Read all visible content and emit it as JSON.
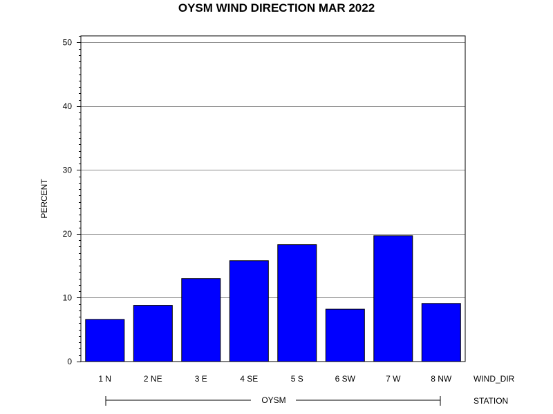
{
  "chart_data": {
    "type": "bar",
    "title": "OYSM WIND DIRECTION MAR 2022",
    "ylabel": "PERCENT",
    "xlabel": "WIND_DIR",
    "group_axis_label": "STATION",
    "group_label": "OYSM",
    "categories": [
      "1 N",
      "2 NE",
      "3 E",
      "4 SE",
      "5 S",
      "6 SW",
      "7 W",
      "8 NW"
    ],
    "values": [
      6.6,
      8.8,
      13.0,
      15.8,
      18.3,
      8.2,
      19.7,
      9.1
    ],
    "ylim": [
      0,
      51
    ],
    "yticks": [
      0,
      10,
      20,
      30,
      40,
      50
    ],
    "grid": true,
    "bar_color": "#0000ff",
    "bar_edge_color": "#000000",
    "grid_color": "#888888"
  }
}
